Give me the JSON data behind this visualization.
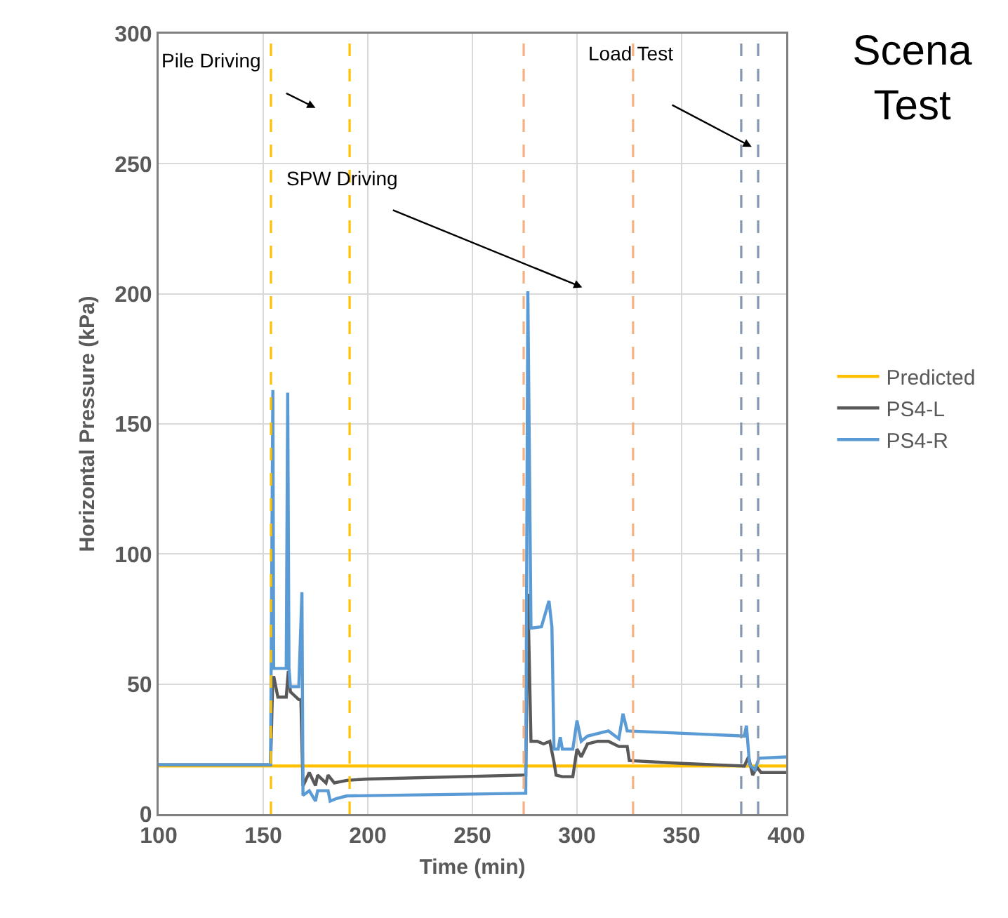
{
  "chart_data": {
    "type": "line",
    "title": "Scena\nTest",
    "xlabel": "Time (min)",
    "ylabel": "Horizontal Pressure (kPa)",
    "xlim": [
      100,
      400
    ],
    "xticks": [
      100,
      150,
      200,
      250,
      300,
      350,
      400
    ],
    "ylim": [
      0,
      300
    ],
    "yticks": [
      0,
      50,
      100,
      150,
      200,
      250,
      300
    ],
    "grid": true,
    "legend": "right",
    "marker": "none",
    "line_style": "solid",
    "annotations": [
      "Pile Driving",
      "SPW Driving",
      "Load Test"
    ],
    "ref_lines": [
      {
        "axis": "x",
        "value": 153.7,
        "color": "#ffc000",
        "line_style": "dashed"
      },
      {
        "axis": "x",
        "value": 191.3,
        "color": "#ffc000",
        "line_style": "dashed"
      },
      {
        "axis": "x",
        "value": 274.5,
        "color": "#f4b183",
        "line_style": "dashed"
      },
      {
        "axis": "x",
        "value": 326.8,
        "color": "#f4b183",
        "line_style": "dashed"
      },
      {
        "axis": "x",
        "value": 378.5,
        "color": "#8497b0",
        "line_style": "dashed"
      },
      {
        "axis": "x",
        "value": 386.6,
        "color": "#8497b0",
        "line_style": "dashed"
      }
    ],
    "series": [
      {
        "name": "Predicted",
        "color": "#ffc000",
        "x": [
          100,
          400
        ],
        "values": [
          18.5,
          18.5
        ]
      },
      {
        "name": "PS4-L",
        "color": "#595959",
        "x": [
          100,
          153.5,
          154.5,
          155,
          157,
          161,
          162,
          163,
          167,
          168,
          169,
          172,
          175,
          176,
          180,
          181,
          184,
          190,
          200,
          274,
          275.5,
          276.5,
          278,
          281,
          284,
          287,
          289,
          290,
          293,
          298,
          300,
          302,
          305,
          310,
          315,
          320,
          324,
          325,
          350,
          380,
          382,
          384,
          386,
          388,
          400
        ],
        "values": [
          19,
          19,
          50,
          53,
          45,
          45,
          55,
          47,
          44,
          44,
          10.8,
          16,
          11,
          15,
          12,
          15,
          12,
          13,
          13.5,
          15,
          15,
          84.7,
          28,
          28,
          27,
          28,
          20,
          15,
          14.4,
          14.4,
          25,
          22,
          27,
          28,
          28,
          26,
          26,
          20.6,
          19.5,
          18.5,
          22,
          15,
          18,
          16,
          16
        ]
      },
      {
        "name": "PS4-R",
        "color": "#5b9bd5",
        "x": [
          100,
          153.5,
          154.6,
          155,
          161,
          161.7,
          162.3,
          163,
          167,
          168.5,
          169,
          172,
          175,
          176,
          181,
          182,
          185,
          190,
          274,
          275.5,
          276.5,
          278,
          283,
          286.6,
          288,
          289,
          291,
          292,
          293,
          298,
          300,
          302,
          305,
          315,
          320,
          322,
          324,
          380,
          381,
          382.5,
          385,
          387,
          400
        ],
        "values": [
          19,
          19,
          163,
          56,
          56,
          162,
          56,
          49,
          49,
          85.3,
          7.2,
          9,
          5,
          9,
          9,
          5,
          6,
          7,
          8,
          8,
          201,
          71.5,
          72,
          82,
          72,
          25,
          25,
          29.6,
          25,
          25,
          36,
          28,
          30,
          32,
          29,
          38.6,
          32,
          30,
          34,
          19,
          17,
          21.5,
          22
        ]
      }
    ]
  }
}
